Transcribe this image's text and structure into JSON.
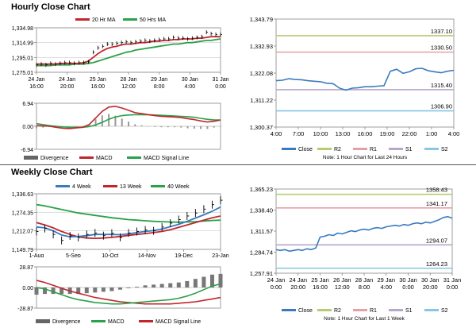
{
  "sections": {
    "hourly_title": "Hourly Close Chart",
    "weekly_title": "Weekly Close Chart"
  },
  "colors": {
    "close": "#3a7bbf",
    "ma_short": "#c0272d",
    "ma_long": "#2aa14a",
    "r2": "#b5cc72",
    "r1": "#e3a1a7",
    "s1": "#b8a7cc",
    "s2": "#87c6e4",
    "hist": "#999999",
    "grid": "#cccccc"
  },
  "chart_data": [
    {
      "id": "hourly-price-ma",
      "type": "line",
      "legend": [
        "20 Hr MA",
        "50 Hrs MA"
      ],
      "y_ticks": [
        "1,334.98",
        "1,314.99",
        "1,295.01",
        "1,275.01"
      ],
      "ylim": [
        1275.01,
        1334.98
      ],
      "x_ticks": [
        "24 Jan\n16:00",
        "24 Jan\n20:00",
        "25 Jan\n16:00",
        "28 Jan\n12:00",
        "29 Jan\n8:00",
        "30 Jan\n4:00",
        "31 Jan\n0:00"
      ],
      "series": [
        {
          "name": "Price",
          "values": [
            1285,
            1286,
            1285,
            1287,
            1286,
            1287,
            1288,
            1288,
            1287,
            1288,
            1288,
            1289,
            1302,
            1308,
            1310,
            1313,
            1313,
            1314,
            1315,
            1316,
            1315,
            1316,
            1317,
            1318,
            1317,
            1318,
            1319,
            1320,
            1320,
            1322,
            1321,
            1321,
            1320,
            1321,
            1322,
            1323,
            1329,
            1327,
            1326,
            1326
          ]
        },
        {
          "name": "20 Hr MA",
          "values": [
            1286,
            1286,
            1286,
            1286,
            1286,
            1287,
            1287,
            1287,
            1287,
            1287,
            1288,
            1290,
            1295,
            1300,
            1304,
            1307,
            1309,
            1310,
            1312,
            1313,
            1313,
            1314,
            1315,
            1315,
            1316,
            1317,
            1317,
            1318,
            1318,
            1319,
            1319,
            1320,
            1320,
            1320,
            1321,
            1321,
            1322,
            1323,
            1323,
            1323
          ]
        },
        {
          "name": "50 Hrs MA",
          "values": [
            1284,
            1284,
            1284,
            1284,
            1285,
            1285,
            1285,
            1285,
            1286,
            1286,
            1286,
            1287,
            1288,
            1290,
            1292,
            1294,
            1296,
            1298,
            1300,
            1302,
            1303,
            1305,
            1306,
            1307,
            1308,
            1309,
            1310,
            1311,
            1312,
            1313,
            1313,
            1314,
            1315,
            1315,
            1316,
            1317,
            1318,
            1318,
            1319,
            1320
          ]
        }
      ]
    },
    {
      "id": "hourly-macd",
      "type": "line",
      "legend": [
        "Divergence",
        "MACD",
        "MACD Signal Line"
      ],
      "y_ticks": [
        "6.94",
        "0.00",
        "-6.94"
      ],
      "ylim": [
        -6.94,
        6.94
      ],
      "series": [
        {
          "name": "MACD",
          "values": [
            0.2,
            0.1,
            0.0,
            -0.3,
            -0.6,
            -0.7,
            -0.5,
            -0.3,
            0.5,
            2.5,
            4.5,
            5.8,
            6.0,
            5.5,
            4.8,
            4.1,
            3.8,
            3.5,
            3.2,
            3.0,
            2.9,
            2.8,
            2.6,
            2.3,
            2.0,
            1.6,
            1.3,
            1.5,
            1.9
          ]
        },
        {
          "name": "MACD Signal Line",
          "values": [
            0.8,
            0.5,
            0.2,
            0.0,
            -0.2,
            -0.3,
            -0.3,
            -0.3,
            -0.1,
            0.4,
            1.2,
            2.1,
            2.8,
            3.2,
            3.4,
            3.5,
            3.5,
            3.5,
            3.4,
            3.3,
            3.2,
            3.1,
            3.0,
            2.9,
            2.7,
            2.4,
            2.1,
            1.9,
            1.9
          ]
        },
        {
          "name": "Divergence",
          "values": [
            -0.6,
            -0.4,
            -0.2,
            -0.3,
            -0.4,
            -0.4,
            -0.2,
            0.0,
            0.6,
            2.1,
            3.3,
            3.7,
            3.2,
            2.3,
            1.4,
            0.6,
            0.3,
            0.0,
            -0.2,
            -0.3,
            -0.3,
            -0.3,
            -0.4,
            -0.6,
            -0.7,
            -0.8,
            -0.8,
            -0.4,
            0.0
          ]
        }
      ]
    },
    {
      "id": "hourly-close-pivots",
      "type": "line",
      "legend": [
        "Close",
        "R2",
        "R1",
        "S1",
        "S2"
      ],
      "y_ticks": [
        "1,343.79",
        "1,332.93",
        "1,322.08",
        "1,311.22",
        "1,300.37"
      ],
      "ylim": [
        1300.37,
        1343.79
      ],
      "x_ticks": [
        "4:00",
        "7:00",
        "10:00",
        "13:00",
        "16:00",
        "19:00",
        "22:00",
        "1:00",
        "4:00"
      ],
      "levels": {
        "R2": 1337.1,
        "R1": 1330.5,
        "S1": 1315.4,
        "S2": 1306.9
      },
      "level_labels": [
        "1337.10",
        "1330.50",
        "1315.40",
        "1306.90"
      ],
      "series": [
        {
          "name": "Close",
          "values": [
            1319.0,
            1319.2,
            1319.8,
            1319.5,
            1319.4,
            1319.0,
            1318.8,
            1318.6,
            1318.0,
            1317.8,
            1316.0,
            1315.2,
            1316.0,
            1316.2,
            1316.6,
            1316.6,
            1316.8,
            1317.0,
            1322.8,
            1323.6,
            1322.0,
            1322.6,
            1323.8,
            1324.0,
            1323.0,
            1322.6,
            1322.2,
            1322.8,
            1323.2
          ]
        }
      ],
      "note": "Note: 1 Hour Chart for Last 24 Hours"
    },
    {
      "id": "weekly-price-ma",
      "type": "line",
      "legend": [
        "4 Week",
        "13 Week",
        "40 Week"
      ],
      "y_ticks": [
        "1,336.63",
        "1,274.35",
        "1,212.07",
        "1,149.79"
      ],
      "ylim": [
        1149.79,
        1336.63
      ],
      "x_ticks": [
        "1-Aug",
        "5-Sep",
        "10-Oct",
        "14-Nov",
        "19-Dec",
        "23-Jan"
      ],
      "series": [
        {
          "name": "Price",
          "values": [
            1210,
            1220,
            1200,
            1180,
            1195,
            1190,
            1200,
            1205,
            1196,
            1204,
            1190,
            1205,
            1210,
            1215,
            1212,
            1225,
            1238,
            1250,
            1262,
            1272,
            1285,
            1300,
            1315
          ]
        },
        {
          "name": "4 Week",
          "values": [
            1225,
            1222,
            1212,
            1198,
            1192,
            1193,
            1196,
            1200,
            1200,
            1200,
            1199,
            1202,
            1206,
            1210,
            1213,
            1218,
            1226,
            1234,
            1244,
            1255,
            1266,
            1278,
            1292
          ]
        },
        {
          "name": "13 Week",
          "values": [
            1240,
            1232,
            1222,
            1210,
            1200,
            1192,
            1188,
            1187,
            1188,
            1190,
            1193,
            1197,
            1200,
            1203,
            1206,
            1210,
            1216,
            1224,
            1232,
            1240,
            1248,
            1256,
            1262
          ]
        },
        {
          "name": "40 Week",
          "values": [
            1300,
            1296,
            1290,
            1284,
            1278,
            1272,
            1268,
            1264,
            1260,
            1256,
            1253,
            1250,
            1248,
            1246,
            1244,
            1243,
            1242,
            1241,
            1242,
            1243,
            1245,
            1247,
            1248
          ]
        }
      ]
    },
    {
      "id": "weekly-macd",
      "type": "line",
      "legend": [
        "Divergence",
        "MACD",
        "MACD Signal Line"
      ],
      "y_ticks": [
        "28.87",
        "0.00",
        "-28.87"
      ],
      "ylim": [
        -28.87,
        28.87
      ],
      "series": [
        {
          "name": "MACD",
          "values": [
            0,
            -2,
            -6,
            -10,
            -14,
            -17,
            -19,
            -21,
            -22,
            -23,
            -23,
            -22,
            -21,
            -20,
            -19,
            -18,
            -17,
            -15,
            -12,
            -8,
            -3,
            2,
            5
          ]
        },
        {
          "name": "MACD Signal Line",
          "values": [
            10,
            7,
            3,
            -1,
            -5,
            -8,
            -11,
            -14,
            -16,
            -18,
            -20,
            -21,
            -22,
            -23,
            -23,
            -23,
            -23,
            -22,
            -21,
            -20,
            -18,
            -16,
            -14
          ]
        },
        {
          "name": "Divergence",
          "values": [
            -10,
            -9,
            -9,
            -9,
            -9,
            -9,
            -8,
            -7,
            -6,
            -5,
            -3,
            -1,
            1,
            3,
            4,
            5,
            6,
            7,
            9,
            12,
            15,
            18,
            19
          ]
        }
      ]
    },
    {
      "id": "weekly-close-pivots",
      "type": "line",
      "legend": [
        "Close",
        "R2",
        "R1",
        "S1",
        "S2"
      ],
      "y_ticks": [
        "1,365.23",
        "1,338.40",
        "1,311.57",
        "1,284.74",
        "1,257.91"
      ],
      "ylim": [
        1257.91,
        1365.23
      ],
      "x_ticks": [
        "24 Jan\n0:00",
        "24 Jan\n20:00",
        "25 Jan\n16:00",
        "26 Jan\n12:00",
        "28 Jan\n8:00",
        "29 Jan\n4:00",
        "30 Jan\n0:00",
        "30 Jan\n20:00",
        "31 Jan\n0:00"
      ],
      "levels": {
        "R2": 1358.43,
        "R1": 1341.17,
        "S1": 1294.07,
        "S2": 1264.23
      },
      "level_labels": [
        "1358.43",
        "1341.17",
        "1294.07",
        "1264.23"
      ],
      "series": [
        {
          "name": "Close",
          "values": [
            1288,
            1287,
            1288,
            1286,
            1287,
            1288,
            1287,
            1289,
            1288,
            1290,
            1304,
            1305,
            1307,
            1306,
            1309,
            1308,
            1310,
            1312,
            1311,
            1313,
            1314,
            1313,
            1315,
            1316,
            1315,
            1317,
            1318,
            1319,
            1318,
            1320,
            1319,
            1321,
            1322,
            1321,
            1323,
            1322,
            1324,
            1326,
            1329,
            1330,
            1328
          ]
        }
      ],
      "note": "Note: 1 Hour Chart for Last 1 Week"
    }
  ]
}
